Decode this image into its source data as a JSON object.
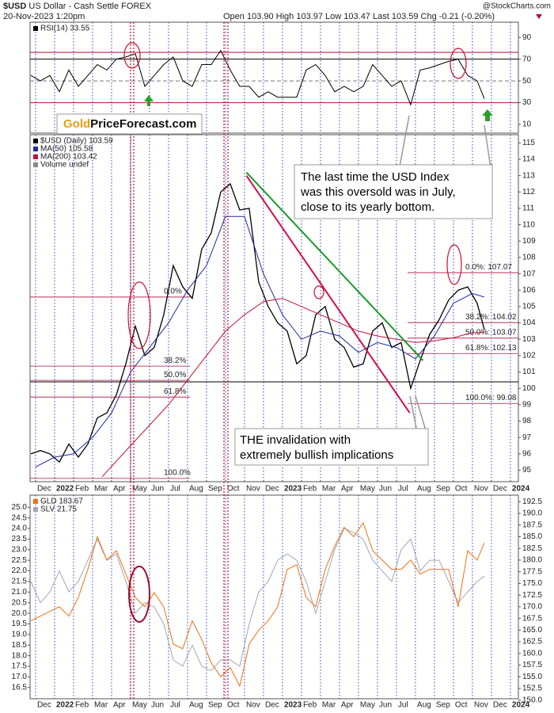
{
  "header": {
    "symbol": "$USD",
    "name": "US Dollar - Cash Settle FOREX",
    "date": "20-Nov-2023 1:20pm",
    "quote": "Open 103.90 High 103.97 Low 103.47 Last 103.59 Chg -0.21 (-0.20%)",
    "source": "@StockCharts.com"
  },
  "chart_data": [
    {
      "type": "line",
      "logo": [
        "Gold",
        "PriceForecast.com"
      ],
      "xlim": [
        -0.29,
        25.42
      ],
      "ylim": [
        2,
        104
      ],
      "yticks": [
        10,
        30,
        50,
        70,
        90
      ],
      "hlines": [
        {
          "value": 76.2,
          "color": "#b0103a"
        },
        {
          "value": 70,
          "color": "#000000"
        },
        {
          "value": 50,
          "color": "#777777",
          "dashed": true
        },
        {
          "value": 30,
          "color": "#b0103a"
        }
      ],
      "x": [
        -0.25,
        0.25,
        0.75,
        1.25,
        1.75,
        2.25,
        2.75,
        3.25,
        3.75,
        4.25,
        4.75,
        5.25,
        5.75,
        6.25,
        6.75,
        7.25,
        7.75,
        8.25,
        8.75,
        9.25,
        9.75,
        10.25,
        10.75,
        11.25,
        11.75,
        12.25,
        12.75,
        13.25,
        13.75,
        14.25,
        14.75,
        15.25,
        15.75,
        16.25,
        16.75,
        17.25,
        17.75,
        18.25,
        18.75,
        19.25,
        19.75,
        20.25,
        20.75,
        21.25,
        21.75,
        22.25,
        22.75,
        23.25,
        23.63
      ],
      "series": [
        {
          "name": "RSI(14) 33.55",
          "color": "#000000",
          "values": [
            55,
            50,
            55,
            40,
            60,
            45,
            55,
            65,
            60,
            70,
            72,
            75,
            45,
            55,
            65,
            72,
            50,
            45,
            65,
            65,
            78,
            60,
            45,
            45,
            35,
            40,
            35,
            35,
            35,
            60,
            65,
            55,
            40,
            45,
            40,
            45,
            65,
            55,
            45,
            50,
            28,
            60,
            62,
            65,
            68,
            70,
            55,
            50,
            33.55
          ]
        }
      ]
    },
    {
      "type": "line",
      "xlim": [
        -0.29,
        25.42
      ],
      "ylim": [
        94.3,
        115.5
      ],
      "yticks": [
        95,
        96,
        97,
        98,
        99,
        100,
        101,
        102,
        103,
        104,
        105,
        106,
        107,
        108,
        109,
        110,
        111,
        112,
        113,
        114,
        115
      ],
      "xticks": [
        {
          "value": 0,
          "label": "Dec"
        },
        {
          "value": 1,
          "label": "2022"
        },
        {
          "value": 2,
          "label": "Feb"
        },
        {
          "value": 3,
          "label": "Mar"
        },
        {
          "value": 4,
          "label": "Apr"
        },
        {
          "value": 5,
          "label": "May"
        },
        {
          "value": 6,
          "label": "Jun"
        },
        {
          "value": 7,
          "label": "Jul"
        },
        {
          "value": 8,
          "label": "Aug"
        },
        {
          "value": 9,
          "label": "Sep"
        },
        {
          "value": 10,
          "label": "Oct"
        },
        {
          "value": 11,
          "label": "Nov"
        },
        {
          "value": 12,
          "label": "Dec"
        },
        {
          "value": 13,
          "label": "2023"
        },
        {
          "value": 14,
          "label": "Feb"
        },
        {
          "value": 15,
          "label": "Mar"
        },
        {
          "value": 16,
          "label": "Apr"
        },
        {
          "value": 17,
          "label": "May"
        },
        {
          "value": 18,
          "label": "Jun"
        },
        {
          "value": 19,
          "label": "Jul"
        },
        {
          "value": 20,
          "label": "Aug"
        },
        {
          "value": 21,
          "label": "Sep"
        },
        {
          "value": 22,
          "label": "Oct"
        },
        {
          "value": 23,
          "label": "Nov"
        },
        {
          "value": 24,
          "label": "Dec"
        },
        {
          "value": 25,
          "label": "2024"
        }
      ],
      "legend_note": "Volume undef",
      "hlines": [
        {
          "value": 100.4,
          "color": "#000000"
        }
      ],
      "fib_left": [
        {
          "label": "0.0%",
          "value": 105.58
        },
        {
          "label": "38.2%",
          "value": 101.36
        },
        {
          "label": "50.0%",
          "value": 100.49
        },
        {
          "label": "61.8%",
          "value": 99.47
        },
        {
          "label": "100.0%",
          "value": 94.5
        }
      ],
      "fib_right": [
        {
          "label": "0.0%: 107.07",
          "value": 107.07
        },
        {
          "label": "38.2%: 104.02",
          "value": 104.02
        },
        {
          "label": "50.0%: 103.07",
          "value": 103.07
        },
        {
          "label": "61.8%: 102.13",
          "value": 102.13
        },
        {
          "label": "100.0%: 99.08",
          "value": 99.08
        }
      ],
      "trendlines": [
        {
          "color": "#1a9a2a",
          "x": [
            11.1,
            20.4
          ],
          "y": [
            113.2,
            101.7
          ]
        },
        {
          "color": "#d0104a",
          "x": [
            11.1,
            19.7
          ],
          "y": [
            113.0,
            98.5
          ]
        }
      ],
      "annotations": [
        [
          "The last time the USD Index",
          "was this oversold was in July,",
          "close to its yearly bottom."
        ],
        [
          "THE invalidation with",
          "extremely bullish implications"
        ]
      ],
      "x": [
        -0.25,
        0.25,
        0.75,
        1.25,
        1.75,
        2.25,
        2.75,
        3.25,
        3.75,
        4.25,
        4.75,
        5.25,
        5.75,
        6.25,
        6.75,
        7.25,
        7.75,
        8.25,
        8.75,
        9.25,
        9.75,
        10.25,
        10.75,
        11.25,
        11.75,
        12.25,
        12.75,
        13.25,
        13.75,
        14.25,
        14.75,
        15.25,
        15.75,
        16.25,
        16.75,
        17.25,
        17.75,
        18.25,
        18.75,
        19.25,
        19.75,
        20.25,
        20.75,
        21.25,
        21.75,
        22.25,
        22.75,
        23.25,
        23.63
      ],
      "series": [
        {
          "name": "$USD (Daily) 103.59",
          "color": "#000000",
          "values": [
            96.0,
            96.2,
            96.0,
            95.5,
            96.6,
            95.8,
            96.6,
            98.2,
            98.5,
            99.6,
            101.5,
            103.8,
            102.0,
            102.5,
            104.5,
            107.5,
            106.2,
            105.5,
            108.5,
            109.5,
            112.0,
            112.5,
            110.9,
            111.0,
            106.5,
            105.0,
            104.0,
            103.5,
            101.5,
            102.0,
            104.5,
            105.0,
            103.0,
            102.5,
            101.3,
            101.5,
            103.5,
            104.0,
            102.5,
            102.8,
            100.0,
            101.7,
            103.3,
            104.2,
            105.4,
            106.0,
            106.2,
            105.2,
            103.59
          ]
        },
        {
          "name": "MA(50) 105.58",
          "color": "#1f2a9a",
          "x": [
            0,
            1,
            2,
            3,
            4,
            5,
            6,
            7,
            8,
            9,
            10,
            11,
            12,
            13,
            14,
            15,
            16,
            17,
            18,
            19,
            20,
            21,
            22,
            23,
            23.63
          ],
          "values": [
            95.2,
            95.8,
            96.0,
            97.0,
            98.5,
            101.0,
            102.5,
            104.0,
            106.0,
            107.5,
            110.5,
            110.5,
            107.0,
            104.5,
            103.0,
            103.5,
            103.2,
            102.2,
            102.8,
            102.5,
            101.8,
            103.2,
            105.2,
            105.8,
            105.58
          ]
        },
        {
          "name": "MA(200) 103.42",
          "color": "#c8103a",
          "x": [
            3.5,
            5,
            7,
            9,
            10,
            11,
            12,
            13,
            14,
            15,
            16,
            17,
            18,
            19,
            20,
            21,
            22,
            23,
            23.63
          ],
          "values": [
            94.6,
            96.5,
            99.0,
            102.0,
            103.5,
            104.5,
            105.3,
            105.5,
            105.0,
            104.5,
            104.0,
            103.5,
            103.2,
            103.0,
            102.8,
            102.9,
            103.1,
            103.4,
            103.42
          ]
        }
      ]
    },
    {
      "type": "line",
      "xlim": [
        -0.29,
        25.42
      ],
      "ylim": [
        15.97,
        25.57
      ],
      "yticks": [
        16.5,
        {
          "value": 17,
          "label": "17.0"
        },
        17.5,
        {
          "value": 18,
          "label": "18.0"
        },
        18.5,
        {
          "value": 19,
          "label": "19.0"
        },
        19.5,
        {
          "value": 20,
          "label": "20.0"
        },
        20.5,
        {
          "value": 21,
          "label": "21.0"
        },
        21.5,
        {
          "value": 22,
          "label": "22.0"
        },
        22.5,
        {
          "value": 23,
          "label": "23.0"
        },
        23.5,
        {
          "value": 24,
          "label": "24.0"
        },
        24.5,
        {
          "value": 25,
          "label": "25.0"
        }
      ],
      "y2lim": [
        150.3,
        193.9
      ],
      "y2ticks": [
        {
          "value": 150,
          "label": "150.0"
        },
        152.5,
        {
          "value": 155,
          "label": "155.0"
        },
        157.5,
        {
          "value": 160,
          "label": "160.0"
        },
        162.5,
        {
          "value": 165,
          "label": "165.0"
        },
        167.5,
        {
          "value": 170,
          "label": "170.0"
        },
        172.5,
        {
          "value": 175,
          "label": "175.0"
        },
        177.5,
        {
          "value": 180,
          "label": "180.0"
        },
        182.5,
        {
          "value": 185,
          "label": "185.0"
        },
        187.5,
        {
          "value": 190,
          "label": "190.0"
        },
        192.5
      ],
      "xticks": [
        {
          "value": 0,
          "label": "Dec"
        },
        {
          "value": 1,
          "label": "2022"
        },
        {
          "value": 2,
          "label": "Feb"
        },
        {
          "value": 3,
          "label": "Mar"
        },
        {
          "value": 4,
          "label": "Apr"
        },
        {
          "value": 5,
          "label": "May"
        },
        {
          "value": 6,
          "label": "Jun"
        },
        {
          "value": 7,
          "label": "Jul"
        },
        {
          "value": 8,
          "label": "Aug"
        },
        {
          "value": 9,
          "label": "Sep"
        },
        {
          "value": 10,
          "label": "Oct"
        },
        {
          "value": 11,
          "label": "Nov"
        },
        {
          "value": 12,
          "label": "Dec"
        },
        {
          "value": 13,
          "label": "2023"
        },
        {
          "value": 14,
          "label": "Feb"
        },
        {
          "value": 15,
          "label": "Mar"
        },
        {
          "value": 16,
          "label": "Apr"
        },
        {
          "value": 17,
          "label": "May"
        },
        {
          "value": 18,
          "label": "Jun"
        },
        {
          "value": 19,
          "label": "Jul"
        },
        {
          "value": 20,
          "label": "Aug"
        },
        {
          "value": 21,
          "label": "Sep"
        },
        {
          "value": 22,
          "label": "Oct"
        },
        {
          "value": 23,
          "label": "Nov"
        },
        {
          "value": 24,
          "label": "Dec"
        },
        {
          "value": 25,
          "label": "2024"
        }
      ],
      "x": [
        -0.25,
        0.25,
        0.75,
        1.25,
        1.75,
        2.25,
        2.75,
        3.25,
        3.75,
        4.25,
        4.75,
        5.25,
        5.75,
        6.25,
        6.75,
        7.25,
        7.75,
        8.25,
        8.75,
        9.25,
        9.75,
        10.25,
        10.75,
        11.25,
        11.75,
        12.25,
        12.75,
        13.25,
        13.75,
        14.25,
        14.75,
        15.25,
        15.75,
        16.25,
        16.75,
        17.25,
        17.75,
        18.25,
        18.75,
        19.25,
        19.75,
        20.25,
        20.75,
        21.25,
        21.75,
        22.25,
        22.75,
        23.25,
        23.63
      ],
      "series": [
        {
          "name": "SLV 21.75",
          "color": "#a0a8b0",
          "values": [
            21.5,
            20.5,
            21.0,
            22.0,
            21.0,
            21.5,
            22.5,
            23.5,
            22.5,
            22.8,
            21.5,
            20.0,
            20.5,
            20.3,
            19.5,
            17.8,
            17.5,
            18.5,
            17.5,
            17.3,
            17.8,
            17.8,
            17.5,
            19.5,
            21.0,
            21.5,
            22.5,
            22.8,
            22.5,
            21.5,
            20.0,
            21.5,
            23.0,
            24.0,
            23.8,
            23.5,
            22.5,
            22.0,
            21.5,
            23.0,
            23.5,
            22.0,
            22.5,
            22.5,
            21.5,
            20.5,
            21.0,
            21.5,
            21.75
          ]
        },
        {
          "name": "GLD 183.67",
          "color": "#f07010",
          "axis": "y2",
          "values": [
            167,
            168,
            169,
            170,
            168,
            172,
            178,
            185,
            180,
            182,
            177,
            172,
            170,
            173,
            170,
            162,
            161,
            167,
            163,
            158,
            155,
            157,
            153,
            162,
            165,
            167,
            170,
            178,
            179,
            172,
            170,
            178,
            183,
            187,
            185,
            188,
            182,
            180,
            178,
            178,
            180,
            177,
            178,
            178,
            178,
            170,
            182,
            180,
            183.67
          ]
        }
      ]
    }
  ]
}
